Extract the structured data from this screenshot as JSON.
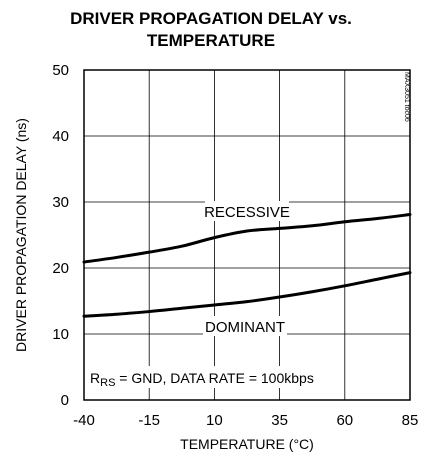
{
  "chart_data": {
    "type": "line",
    "title_lines": [
      "DRIVER PROPAGATION DELAY vs.",
      "TEMPERATURE"
    ],
    "xlabel": "TEMPERATURE (°C)",
    "ylabel": "DRIVER PROPAGATION DELAY (ns)",
    "xlim": [
      -40,
      85
    ],
    "ylim": [
      0,
      50
    ],
    "x_ticks": [
      -40,
      -15,
      10,
      35,
      60,
      85
    ],
    "x_tick_labels": [
      "-40",
      "-15",
      "10",
      "35",
      "60",
      "85"
    ],
    "y_ticks": [
      0,
      10,
      20,
      30,
      40,
      50
    ],
    "y_tick_labels": [
      "0",
      "10",
      "20",
      "30",
      "40",
      "50"
    ],
    "grid": true,
    "series": [
      {
        "name": "RECESSIVE",
        "x": [
          -40,
          -27.5,
          -15,
          -2.5,
          10,
          22.5,
          35,
          47.5,
          60,
          72.5,
          85
        ],
        "y": [
          20.9,
          21.6,
          22.4,
          23.3,
          24.6,
          25.6,
          26.0,
          26.4,
          27.0,
          27.5,
          28.1
        ]
      },
      {
        "name": "DOMINANT",
        "x": [
          -40,
          -27.5,
          -15,
          -2.5,
          10,
          22.5,
          35,
          47.5,
          60,
          72.5,
          85
        ],
        "y": [
          12.7,
          13.0,
          13.4,
          13.9,
          14.4,
          14.9,
          15.6,
          16.4,
          17.3,
          18.3,
          19.3
        ]
      }
    ],
    "annotation": {
      "prefix": "R",
      "subscript": "RS",
      "suffix": " = GND, DATA RATE = 100kbps"
    },
    "figure_code": "MAX3051 toc06"
  }
}
